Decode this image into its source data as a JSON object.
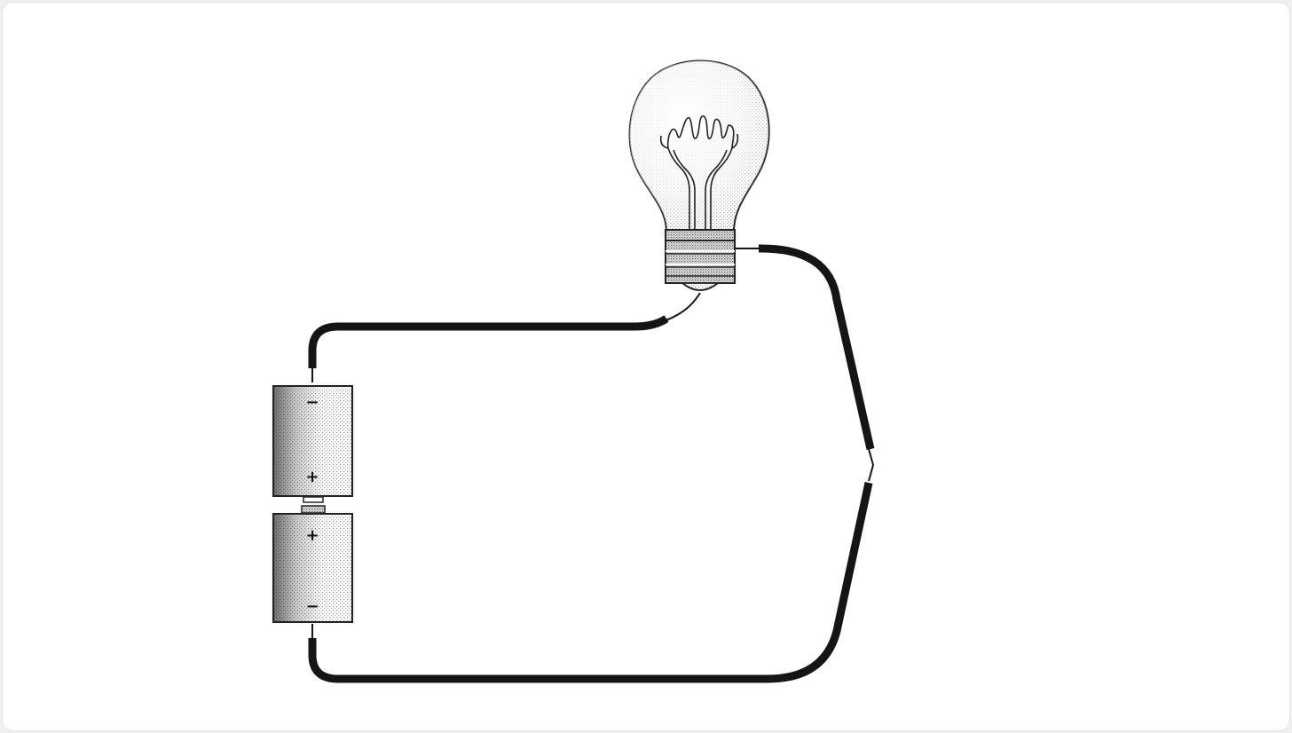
{
  "colors": {
    "wire": "#151515",
    "outline": "#222222",
    "shading": "#9a9a9a",
    "background": "#ffffff"
  },
  "cells": [
    {
      "top_terminal": "−",
      "bottom_terminal": "+"
    },
    {
      "top_terminal": "+",
      "bottom_terminal": "−"
    }
  ]
}
